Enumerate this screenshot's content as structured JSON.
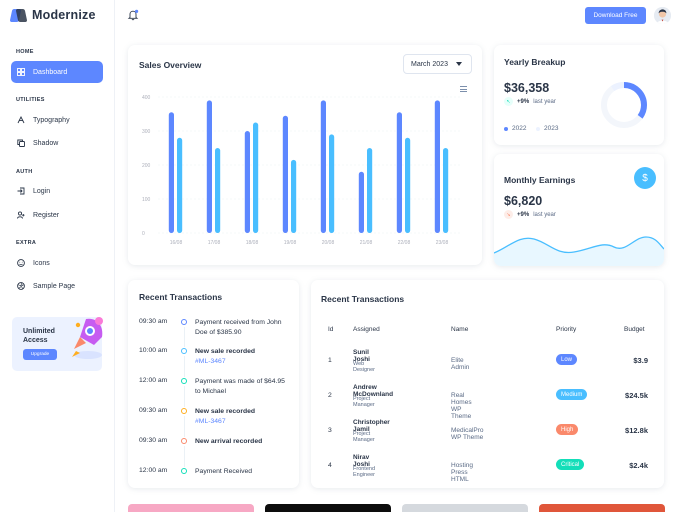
{
  "brand": {
    "name": "Modernize"
  },
  "header": {
    "download_label": "Download Free"
  },
  "sidebar": {
    "sections": [
      {
        "caption": "HOME",
        "items": [
          {
            "label": "Dashboard",
            "icon": "dashboard-icon",
            "active": true
          }
        ]
      },
      {
        "caption": "UTILITIES",
        "items": [
          {
            "label": "Typography",
            "icon": "typography-icon"
          },
          {
            "label": "Shadow",
            "icon": "copy-icon"
          }
        ]
      },
      {
        "caption": "AUTH",
        "items": [
          {
            "label": "Login",
            "icon": "login-icon"
          },
          {
            "label": "Register",
            "icon": "user-plus-icon"
          }
        ]
      },
      {
        "caption": "EXTRA",
        "items": [
          {
            "label": "Icons",
            "icon": "mood-icon"
          },
          {
            "label": "Sample Page",
            "icon": "aperture-icon"
          }
        ]
      }
    ],
    "promo": {
      "title": "Unlimited Access",
      "button_label": "Upgrade"
    }
  },
  "sales_overview": {
    "title": "Sales Overview",
    "month": "March 2023"
  },
  "chart_data": {
    "type": "bar",
    "categories": [
      "16/08",
      "17/08",
      "18/08",
      "19/08",
      "20/08",
      "21/08",
      "22/08",
      "23/08"
    ],
    "yticks": [
      "400",
      "300",
      "200",
      "100",
      "0"
    ],
    "ylim": [
      0,
      400
    ],
    "series": [
      {
        "color": "#5d87ff",
        "values": [
          355,
          390,
          300,
          345,
          390,
          180,
          355,
          390
        ]
      },
      {
        "color": "#49beff",
        "values": [
          280,
          250,
          325,
          215,
          290,
          250,
          280,
          250
        ]
      }
    ]
  },
  "yearly_breakup": {
    "title": "Yearly Breakup",
    "value": "$36,358",
    "change": "+9%",
    "change_label": "last year",
    "legend": [
      "2022",
      "2023"
    ],
    "colors": {
      "primary": "#5d87ff",
      "light": "#ecf2ff",
      "track": "#f5f7fb"
    }
  },
  "monthly_earnings": {
    "title": "Monthly Earnings",
    "value": "$6,820",
    "change": "+9%",
    "change_label": "last year",
    "badge_icon": "$"
  },
  "recent_timeline": {
    "title": "Recent Transactions",
    "items": [
      {
        "time": "09:30 am",
        "text": "Payment received from John Doe of $385.90",
        "bold": false,
        "link": "",
        "color": "#5d87ff"
      },
      {
        "time": "10:00 am",
        "text": "New sale recorded",
        "bold": true,
        "link": "#ML-3467",
        "color": "#49beff"
      },
      {
        "time": "12:00 am",
        "text": "Payment was made of $64.95 to Michael",
        "bold": false,
        "link": "",
        "color": "#13deb9"
      },
      {
        "time": "09:30 am",
        "text": "New sale recorded",
        "bold": true,
        "link": "#ML-3467",
        "color": "#ffae1f"
      },
      {
        "time": "09:30 am",
        "text": "New arrival recorded",
        "bold": true,
        "link": "",
        "color": "#fa896b"
      },
      {
        "time": "12:00 am",
        "text": "Payment Received",
        "bold": false,
        "link": "",
        "color": "#13deb9"
      }
    ]
  },
  "transactions_table": {
    "title": "Recent Transactions",
    "columns": [
      "Id",
      "Assigned",
      "Name",
      "Priority",
      "Budget"
    ],
    "rows": [
      {
        "id": "1",
        "name": "Sunil Joshi",
        "role": "Web Designer",
        "project": "Elite Admin",
        "priority": "Low",
        "priority_color": "#5d87ff",
        "budget": "$3.9"
      },
      {
        "id": "2",
        "name": "Andrew McDownland",
        "role": "Project Manager",
        "project": "Real Homes WP Theme",
        "priority": "Medium",
        "priority_color": "#49beff",
        "budget": "$24.5k"
      },
      {
        "id": "3",
        "name": "Christopher Jamil",
        "role": "Project Manager",
        "project": "MedicalPro WP Theme",
        "priority": "High",
        "priority_color": "#fa896b",
        "budget": "$12.8k"
      },
      {
        "id": "4",
        "name": "Nirav Joshi",
        "role": "Frontend Engineer",
        "project": "Hosting Press HTML",
        "priority": "Critical",
        "priority_color": "#13deb9",
        "budget": "$2.4k"
      }
    ]
  }
}
